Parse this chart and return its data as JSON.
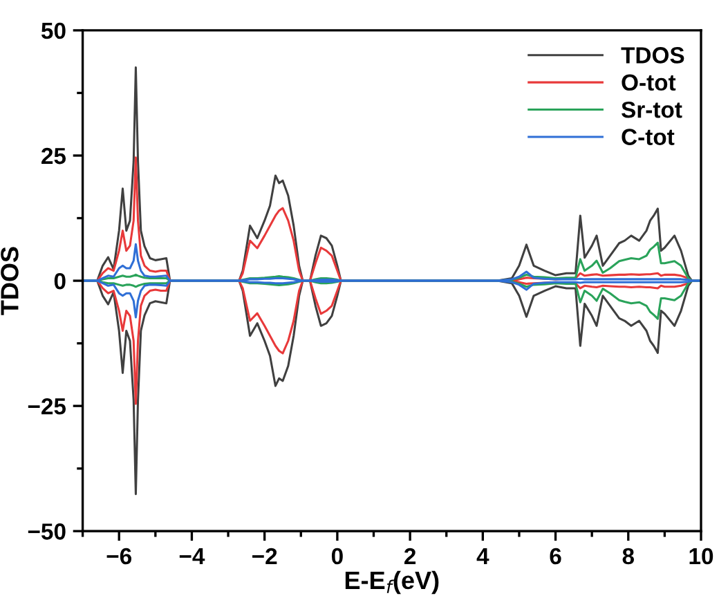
{
  "chart_data": {
    "type": "line",
    "xlabel": "E-E$_{f}$(eV)",
    "ylabel": "TDOS",
    "x": [
      -7.0,
      -6.6,
      -6.45,
      -6.3,
      -6.15,
      -6.0,
      -5.9,
      -5.8,
      -5.7,
      -5.6,
      -5.54,
      -5.48,
      -5.4,
      -5.3,
      -5.15,
      -5.0,
      -4.85,
      -4.7,
      -4.6,
      -4.5,
      -2.7,
      -2.6,
      -2.4,
      -2.2,
      -2.0,
      -1.85,
      -1.7,
      -1.6,
      -1.5,
      -1.35,
      -1.2,
      -1.05,
      -0.95,
      -0.75,
      -0.6,
      -0.45,
      -0.3,
      -0.15,
      0.0,
      0.1,
      4.4,
      4.8,
      5.0,
      5.2,
      5.4,
      5.7,
      6.0,
      6.3,
      6.55,
      6.68,
      6.8,
      7.0,
      7.13,
      7.3,
      7.5,
      7.75,
      7.9,
      8.08,
      8.3,
      8.5,
      8.6,
      8.7,
      8.81,
      8.9,
      9.0,
      9.27,
      9.45,
      9.65,
      9.75,
      10.0
    ],
    "series": [
      {
        "name": "TDOS",
        "color": "#404040",
        "values": [
          0,
          0,
          3,
          4.7,
          2.3,
          10,
          18.4,
          10,
          12,
          23.8,
          42.6,
          23.8,
          10,
          6.9,
          4.5,
          4.1,
          4.3,
          4.5,
          0,
          0,
          0,
          2,
          11,
          8.5,
          12,
          15,
          21,
          19.5,
          20,
          17,
          11,
          3,
          0,
          0,
          5,
          9,
          8.5,
          7,
          3,
          0,
          0,
          0.5,
          3,
          7.2,
          3,
          2,
          1.1,
          1.5,
          1.5,
          13,
          4.6,
          7,
          9,
          3,
          5,
          7.5,
          8,
          9,
          8,
          10,
          12,
          13,
          14.4,
          6,
          6.6,
          9,
          6,
          1,
          0,
          0
        ]
      },
      {
        "color": "#404040",
        "values": [
          0,
          0,
          -3,
          -4.7,
          -2.3,
          -10,
          -18.4,
          -10,
          -12,
          -23.8,
          -42.6,
          -23.8,
          -10,
          -6.9,
          -4.5,
          -4.1,
          -4.3,
          -4.5,
          0,
          0,
          0,
          -2,
          -11,
          -8.5,
          -12,
          -15,
          -21,
          -19.5,
          -20,
          -17,
          -11,
          -3,
          0,
          0,
          -5,
          -9,
          -8.5,
          -7,
          -3,
          0,
          0,
          -0.5,
          -3,
          -7.2,
          -3,
          -2,
          -1.1,
          -1.5,
          -1.5,
          -13,
          -4.6,
          -7,
          -9,
          -3,
          -5,
          -7.5,
          -8,
          -9,
          -8,
          -10,
          -12,
          -13,
          -14.4,
          -6,
          -6.6,
          -9,
          -6,
          -1,
          0,
          0
        ]
      },
      {
        "name": "O-tot",
        "color": "#e8393a",
        "values": [
          0,
          0,
          1.5,
          2.5,
          2,
          6,
          10,
          6,
          7,
          12,
          24.6,
          12,
          5,
          3,
          2,
          1.8,
          2,
          2,
          0,
          0,
          0,
          1.5,
          8,
          6.5,
          9,
          11,
          13,
          14,
          14.5,
          12,
          8,
          2,
          0,
          0,
          3.5,
          6.6,
          6,
          5,
          2,
          0,
          0,
          0,
          0.3,
          0.6,
          0.5,
          0.4,
          0.3,
          0.4,
          0.5,
          1.5,
          1,
          1.2,
          1.3,
          1,
          1.1,
          1.2,
          1.2,
          1.3,
          1.2,
          1.3,
          1.3,
          1.4,
          1.5,
          1,
          1.2,
          1.2,
          1,
          0.5,
          0,
          0
        ]
      },
      {
        "color": "#e8393a",
        "values": [
          0,
          0,
          -1.5,
          -2.5,
          -2,
          -6,
          -10,
          -6,
          -7,
          -12,
          -24.6,
          -12,
          -5,
          -3,
          -2,
          -1.8,
          -2,
          -2,
          0,
          0,
          0,
          -1.5,
          -8,
          -6.5,
          -9,
          -11,
          -13,
          -14,
          -14.5,
          -12,
          -8,
          -2,
          0,
          0,
          -3.5,
          -6.6,
          -6,
          -5,
          -2,
          0,
          0,
          0,
          -0.3,
          -0.6,
          -0.5,
          -0.4,
          -0.3,
          -0.4,
          -0.5,
          -1.5,
          -1,
          -1.2,
          -1.3,
          -1,
          -1.1,
          -1.2,
          -1.2,
          -1.3,
          -1.2,
          -1.3,
          -1.3,
          -1.4,
          -1.5,
          -1,
          -1.2,
          -1.2,
          -1,
          -0.5,
          0,
          0
        ]
      },
      {
        "name": "Sr-tot",
        "color": "#2aa35a",
        "values": [
          0,
          0,
          0.3,
          0.5,
          0.5,
          0.8,
          1,
          0.8,
          0.8,
          1,
          1.2,
          1,
          0.8,
          0.6,
          0.5,
          0.5,
          0.5,
          0.5,
          0,
          0,
          0,
          0.2,
          0.5,
          0.5,
          0.6,
          0.7,
          0.8,
          0.9,
          0.8,
          0.7,
          0.5,
          0.2,
          0,
          0,
          0.3,
          0.5,
          0.5,
          0.4,
          0.2,
          0,
          0,
          0.2,
          0.6,
          1.2,
          0.8,
          0.7,
          0.5,
          0.6,
          0.6,
          4.3,
          2,
          3,
          4,
          1.6,
          2.5,
          3.9,
          4.2,
          4.5,
          4.3,
          5,
          6.2,
          6.8,
          7.6,
          3.5,
          3.5,
          3.9,
          3,
          0.5,
          0,
          0
        ]
      },
      {
        "color": "#2aa35a",
        "values": [
          0,
          0,
          -0.3,
          -0.5,
          -0.5,
          -0.8,
          -1,
          -0.8,
          -0.8,
          -1,
          -1.2,
          -1,
          -0.8,
          -0.6,
          -0.5,
          -0.5,
          -0.5,
          -0.5,
          0,
          0,
          0,
          -0.2,
          -0.5,
          -0.5,
          -0.6,
          -0.7,
          -0.8,
          -0.9,
          -0.8,
          -0.7,
          -0.5,
          -0.2,
          0,
          0,
          -0.3,
          -0.5,
          -0.5,
          -0.4,
          -0.2,
          0,
          0,
          -0.2,
          -0.6,
          -1.2,
          -0.8,
          -0.7,
          -0.5,
          -0.6,
          -0.6,
          -4.3,
          -2,
          -3,
          -4,
          -1.6,
          -2.5,
          -3.9,
          -4.2,
          -4.5,
          -4.3,
          -5,
          -6.2,
          -6.8,
          -7.6,
          -3.5,
          -3.5,
          -3.9,
          -3,
          -0.5,
          0,
          0
        ]
      },
      {
        "name": "C-tot",
        "color": "#2f6fd6",
        "values": [
          0,
          0,
          0.5,
          1,
          0.8,
          2.5,
          3,
          2.5,
          2.5,
          4,
          7.3,
          4,
          2,
          1,
          0.8,
          0.8,
          0.9,
          1,
          0,
          0,
          0,
          0.1,
          0.3,
          0.3,
          0.4,
          0.4,
          0.5,
          0.5,
          0.5,
          0.4,
          0.3,
          0.1,
          0,
          0,
          0.1,
          0.2,
          0.2,
          0.2,
          0.1,
          0,
          0,
          0.3,
          0.8,
          1.8,
          0.6,
          0.4,
          0.3,
          0.3,
          0.3,
          0.4,
          0.3,
          0.3,
          0.3,
          0.3,
          0.3,
          0.3,
          0.3,
          0.3,
          0.3,
          0.3,
          0.3,
          0.3,
          0.3,
          0.3,
          0.3,
          0.3,
          0.3,
          0.2,
          0,
          0
        ]
      },
      {
        "color": "#2f6fd6",
        "values": [
          0,
          0,
          -0.5,
          -1,
          -0.8,
          -2.5,
          -3,
          -2.5,
          -2.5,
          -4,
          -7.3,
          -4,
          -2,
          -1,
          -0.8,
          -0.8,
          -0.9,
          -1,
          0,
          0,
          0,
          -0.1,
          -0.3,
          -0.3,
          -0.4,
          -0.4,
          -0.5,
          -0.5,
          -0.5,
          -0.4,
          -0.3,
          -0.1,
          0,
          0,
          -0.1,
          -0.2,
          -0.2,
          -0.2,
          -0.1,
          0,
          0,
          -0.3,
          -0.8,
          -1.8,
          -0.6,
          -0.4,
          -0.3,
          -0.3,
          -0.3,
          -0.4,
          -0.3,
          -0.3,
          -0.3,
          -0.3,
          -0.3,
          -0.3,
          -0.3,
          -0.3,
          -0.3,
          -0.3,
          -0.3,
          -0.3,
          -0.3,
          -0.3,
          -0.3,
          -0.3,
          -0.3,
          -0.2,
          0,
          0
        ]
      }
    ],
    "xlim": [
      -7,
      10
    ],
    "xticks": [
      {
        "value": -7,
        "label": null
      },
      -6,
      {
        "value": -5,
        "label": null
      },
      -4,
      {
        "value": -3,
        "label": null
      },
      -2,
      {
        "value": -1,
        "label": null
      },
      0,
      {
        "value": 1,
        "label": null
      },
      2,
      {
        "value": 3,
        "label": null
      },
      4,
      {
        "value": 5,
        "label": null
      },
      6,
      {
        "value": 7,
        "label": null
      },
      8,
      {
        "value": 9,
        "label": null
      },
      10
    ],
    "ylim": [
      -50,
      50
    ],
    "yticks": [
      -50,
      {
        "value": -37.5,
        "label": null
      },
      -25,
      {
        "value": -12.5,
        "label": null
      },
      0,
      {
        "value": 12.5,
        "label": null
      },
      25,
      {
        "value": 37.5,
        "label": null
      },
      50
    ],
    "grid": false,
    "legend": "top right",
    "marker": "none",
    "line_style": "solid"
  }
}
